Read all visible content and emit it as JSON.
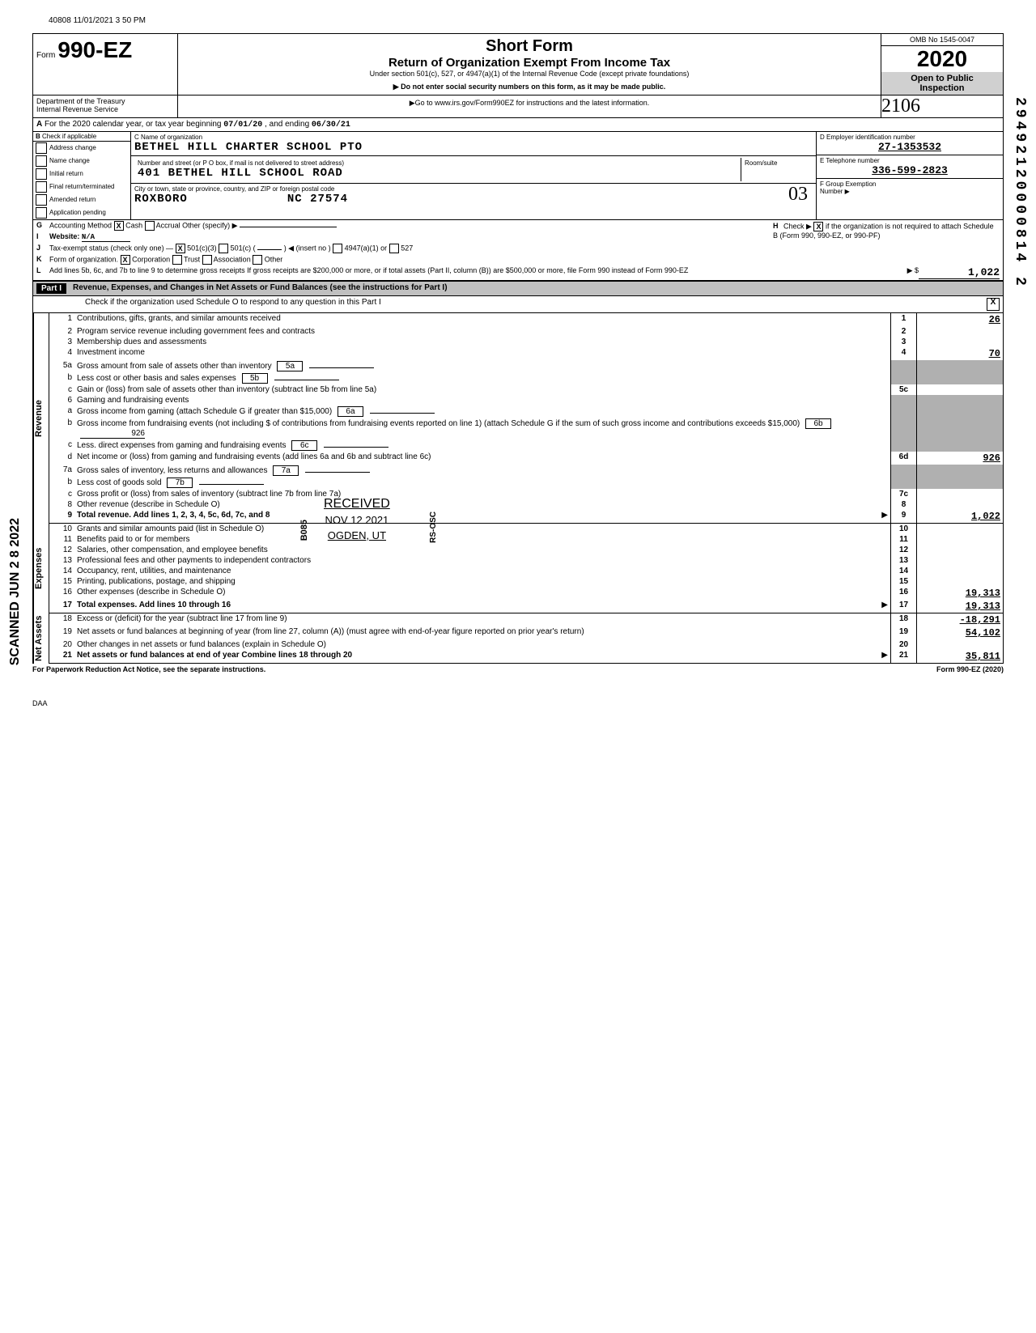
{
  "meta": {
    "timestamp": "40808 11/01/2021 3 50 PM",
    "daa": "DAA"
  },
  "header": {
    "form_prefix": "Form",
    "form_number": "990-EZ",
    "title": "Short Form",
    "subtitle": "Return of Organization Exempt From Income Tax",
    "under": "Under section 501(c), 527, or 4947(a)(1) of the Internal Revenue Code (except private foundations)",
    "warn": "▶ Do not enter social security numbers on this form, as it may be made public.",
    "goto": "▶Go to www.irs.gov/Form990EZ for instructions and the latest information.",
    "omb": "OMB No 1545-0047",
    "year": "2020",
    "open": "Open to Public",
    "inspection": "Inspection",
    "dept1": "Department of the Treasury",
    "dept2": "Internal Revenue Service",
    "handwritten_stamp": "2106"
  },
  "line_a": {
    "letter": "A",
    "text_pre": "For the 2020 calendar year, or tax year beginning",
    "begin": "07/01/20",
    "mid": ", and ending",
    "end": "06/30/21"
  },
  "section_b": {
    "b_label": "B",
    "check_label": "Check if applicable",
    "checks": [
      "Address change",
      "Name change",
      "Initial return",
      "Final return/terminated",
      "Amended return",
      "Application pending"
    ],
    "c_label": "C  Name of organization",
    "org_name": "BETHEL HILL CHARTER SCHOOL PTO",
    "addr_label": "Number and street (or P O  box, if mail is not delivered to street address)",
    "addr": "401 BETHEL HILL SCHOOL ROAD",
    "room_label": "Room/suite",
    "city_label": "City or town, state or province, country, and ZIP or foreign postal code",
    "city": "ROXBORO",
    "state_zip": "NC 27574",
    "d_label": "D  Employer identification number",
    "ein": "27-1353532",
    "e_label": "E  Telephone number",
    "phone": "336-599-2823",
    "f_label": "F  Group Exemption",
    "f_label2": "Number  ▶",
    "handwritten_03": "03"
  },
  "rows_g_l": {
    "g": {
      "letter": "G",
      "text": "Accounting Method",
      "cash": "Cash",
      "accrual": "Accrual  Other (specify) ▶",
      "cash_checked": "X"
    },
    "h": {
      "letter": "H",
      "text": "Check ▶",
      "checked": "X",
      "rest": "if the organization is not required to attach Schedule B (Form 990, 990-EZ, or 990-PF)"
    },
    "i": {
      "letter": "I",
      "text": "Website:",
      "value": "N/A"
    },
    "j": {
      "letter": "J",
      "text": "Tax-exempt status (check only one) —",
      "c3": "501(c)(3)",
      "c3_checked": "X",
      "c": "501(c) (",
      "insert": ") ◀ (insert no )",
      "a1": "4947(a)(1) or",
      "s527": "527"
    },
    "k": {
      "letter": "K",
      "text": "Form of organization.",
      "corp": "Corporation",
      "corp_checked": "X",
      "trust": "Trust",
      "assoc": "Association",
      "other": "Other"
    },
    "l": {
      "letter": "L",
      "text": "Add lines 5b, 6c, and 7b to line 9 to determine gross receipts  If gross receipts are $200,000 or more, or if total assets (Part II, column (B)) are $500,000 or more, file Form 990 instead of Form 990-EZ",
      "arrow": "▶  $",
      "value": "1,022"
    }
  },
  "part1": {
    "label": "Part I",
    "title": "Revenue, Expenses, and Changes in Net Assets or Fund Balances (see the instructions for Part I)",
    "check_line": "Check if the organization used Schedule O to respond to any question in this Part I",
    "checked": "X"
  },
  "revenue": {
    "side": "Revenue",
    "lines": [
      {
        "n": "1",
        "d": "Contributions, gifts, grants, and similar amounts received",
        "box": "1",
        "v": "26"
      },
      {
        "n": "2",
        "d": "Program service revenue including government fees and contracts",
        "box": "2",
        "v": ""
      },
      {
        "n": "3",
        "d": "Membership dues and assessments",
        "box": "3",
        "v": ""
      },
      {
        "n": "4",
        "d": "Investment income",
        "box": "4",
        "v": "70"
      },
      {
        "n": "5a",
        "d": "Gross amount from sale of assets other than inventory",
        "ib": "5a",
        "iv": "",
        "shade": true
      },
      {
        "n": "b",
        "d": "Less  cost or other basis and sales expenses",
        "ib": "5b",
        "iv": "",
        "shade": true
      },
      {
        "n": "c",
        "d": "Gain or (loss) from sale of assets other than inventory (subtract line 5b from line 5a)",
        "box": "5c",
        "v": ""
      },
      {
        "n": "6",
        "d": "Gaming and fundraising events",
        "shade": true
      },
      {
        "n": "a",
        "d": "Gross income from gaming (attach Schedule G if greater than $15,000)",
        "ib": "6a",
        "iv": "",
        "shade": true
      },
      {
        "n": "b",
        "d": "Gross income from fundraising events (not including $                    of contributions from fundraising events reported on line 1) (attach Schedule G if the sum of such gross income and contributions exceeds $15,000)",
        "ib": "6b",
        "iv": "926",
        "shade": true
      },
      {
        "n": "c",
        "d": "Less. direct expenses from gaming and fundraising events",
        "ib": "6c",
        "iv": "",
        "shade": true
      },
      {
        "n": "d",
        "d": "Net income or (loss) from gaming and fundraising events (add lines 6a and 6b and subtract line 6c)",
        "box": "6d",
        "v": "926"
      },
      {
        "n": "7a",
        "d": "Gross sales of inventory, less returns and allowances",
        "ib": "7a",
        "iv": "",
        "shade": true
      },
      {
        "n": "b",
        "d": "Less  cost of goods sold",
        "ib": "7b",
        "iv": "",
        "shade": true
      },
      {
        "n": "c",
        "d": "Gross profit or (loss) from sales of inventory (subtract line 7b from line 7a)",
        "box": "7c",
        "v": ""
      },
      {
        "n": "8",
        "d": "Other revenue (describe in Schedule O)",
        "box": "8",
        "v": ""
      },
      {
        "n": "9",
        "d": "Total revenue. Add lines 1, 2, 3, 4, 5c, 6d, 7c, and 8",
        "box": "9",
        "v": "1,022",
        "bold": true,
        "arrow": "▶"
      }
    ]
  },
  "expenses": {
    "side": "Expenses",
    "lines": [
      {
        "n": "10",
        "d": "Grants and similar amounts paid (list in Schedule O)",
        "box": "10",
        "v": ""
      },
      {
        "n": "11",
        "d": "Benefits paid to or for members",
        "box": "11",
        "v": ""
      },
      {
        "n": "12",
        "d": "Salaries, other compensation, and employee benefits",
        "box": "12",
        "v": ""
      },
      {
        "n": "13",
        "d": "Professional fees and other payments to independent contractors",
        "box": "13",
        "v": ""
      },
      {
        "n": "14",
        "d": "Occupancy, rent, utilities, and maintenance",
        "box": "14",
        "v": ""
      },
      {
        "n": "15",
        "d": "Printing, publications, postage, and shipping",
        "box": "15",
        "v": ""
      },
      {
        "n": "16",
        "d": "Other expenses (describe in Schedule O)",
        "box": "16",
        "v": "19,313"
      },
      {
        "n": "17",
        "d": "Total expenses. Add lines 10 through 16",
        "box": "17",
        "v": "19,313",
        "bold": true,
        "arrow": "▶"
      }
    ]
  },
  "netassets": {
    "side": "Net Assets",
    "lines": [
      {
        "n": "18",
        "d": "Excess or (deficit) for the year (subtract line 17 from line 9)",
        "box": "18",
        "v": "-18,291"
      },
      {
        "n": "19",
        "d": "Net assets or fund balances at beginning of year (from line 27, column (A)) (must agree with end-of-year figure reported on prior year's return)",
        "box": "19",
        "v": "54,102"
      },
      {
        "n": "20",
        "d": "Other changes in net assets or fund balances (explain in Schedule O)",
        "box": "20",
        "v": ""
      },
      {
        "n": "21",
        "d": "Net assets or fund balances at end of year  Combine lines 18 through 20",
        "box": "21",
        "v": "35,811",
        "bold": true,
        "arrow": "▶"
      }
    ]
  },
  "footer": {
    "left": "For Paperwork Reduction Act Notice, see the separate instructions.",
    "right": "Form 990-EZ (2020)"
  },
  "stamps": {
    "scanned": "SCANNED JUN 2 8 2022",
    "right_num": "29492120000814 2",
    "received": "RECEIVED",
    "received_date": "NOV 12 2021",
    "received_loc": "OGDEN, UT",
    "b085": "B085",
    "rs": "RS-OSC"
  }
}
